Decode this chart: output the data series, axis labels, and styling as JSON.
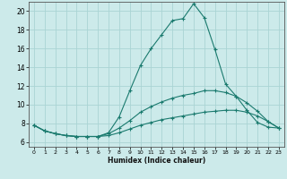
{
  "title": "",
  "xlabel": "Humidex (Indice chaleur)",
  "xlim": [
    -0.5,
    23.5
  ],
  "ylim": [
    5.5,
    21.0
  ],
  "xticks": [
    0,
    1,
    2,
    3,
    4,
    5,
    6,
    7,
    8,
    9,
    10,
    11,
    12,
    13,
    14,
    15,
    16,
    17,
    18,
    19,
    20,
    21,
    22,
    23
  ],
  "yticks": [
    6,
    8,
    10,
    12,
    14,
    16,
    18,
    20
  ],
  "line_color": "#1a7a6e",
  "bg_color": "#cceaea",
  "grid_color": "#aad4d4",
  "series": [
    {
      "x": [
        0,
        1,
        2,
        3,
        4,
        5,
        6,
        7,
        8,
        9,
        10,
        11,
        12,
        13,
        14,
        15,
        16,
        17,
        18,
        19,
        20,
        21,
        22,
        23
      ],
      "y": [
        7.8,
        7.2,
        6.9,
        6.7,
        6.6,
        6.6,
        6.6,
        7.0,
        8.7,
        11.5,
        14.2,
        16.0,
        17.5,
        19.0,
        19.2,
        20.8,
        19.3,
        15.9,
        12.2,
        10.9,
        9.4,
        8.1,
        7.6,
        7.5
      ]
    },
    {
      "x": [
        0,
        1,
        2,
        3,
        4,
        5,
        6,
        7,
        8,
        9,
        10,
        11,
        12,
        13,
        14,
        15,
        16,
        17,
        18,
        19,
        20,
        21,
        22,
        23
      ],
      "y": [
        7.8,
        7.2,
        6.9,
        6.7,
        6.6,
        6.6,
        6.6,
        6.9,
        7.5,
        8.3,
        9.2,
        9.8,
        10.3,
        10.7,
        11.0,
        11.2,
        11.5,
        11.5,
        11.3,
        10.9,
        10.2,
        9.3,
        8.2,
        7.5
      ]
    },
    {
      "x": [
        0,
        1,
        2,
        3,
        4,
        5,
        6,
        7,
        8,
        9,
        10,
        11,
        12,
        13,
        14,
        15,
        16,
        17,
        18,
        19,
        20,
        21,
        22,
        23
      ],
      "y": [
        7.8,
        7.2,
        6.9,
        6.7,
        6.6,
        6.6,
        6.6,
        6.7,
        7.0,
        7.4,
        7.8,
        8.1,
        8.4,
        8.6,
        8.8,
        9.0,
        9.2,
        9.3,
        9.4,
        9.4,
        9.2,
        8.8,
        8.2,
        7.5
      ]
    }
  ]
}
